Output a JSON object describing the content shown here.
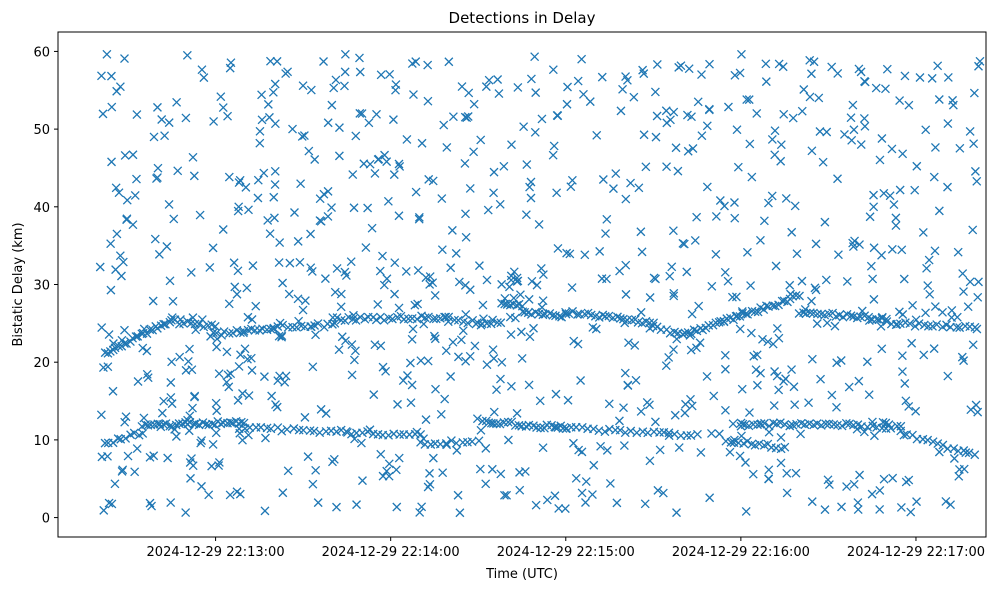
{
  "chart_data": {
    "type": "scatter",
    "title": "Detections in Delay",
    "xlabel": "Time (UTC)",
    "ylabel": "Bistatic Delay (km)",
    "marker": "x",
    "color": "#1f77b4",
    "grid": false,
    "legend": "none",
    "xlim": [
      "2024-12-29 22:12:06",
      "2024-12-29 22:17:24"
    ],
    "ylim": [
      -2.5,
      62.5
    ],
    "xticks": [
      "2024-12-29 22:13:00",
      "2024-12-29 22:14:00",
      "2024-12-29 22:15:00",
      "2024-12-29 22:16:00",
      "2024-12-29 22:17:00"
    ],
    "yticks": [
      0,
      10,
      20,
      30,
      40,
      50,
      60
    ],
    "series": [
      {
        "tracks": [
          {
            "start": "2024-12-29 22:12:22",
            "end": "2024-12-29 22:12:45",
            "y_start": 21.0,
            "y_end": 25.5,
            "count": 25
          },
          {
            "start": "2024-12-29 22:12:45",
            "end": "2024-12-29 22:13:00",
            "y_start": 25.5,
            "y_end": 24.5,
            "count": 12
          },
          {
            "start": "2024-12-29 22:12:58",
            "end": "2024-12-29 22:13:20",
            "y_start": 23.5,
            "y_end": 24.5,
            "count": 18
          },
          {
            "start": "2024-12-29 22:13:20",
            "end": "2024-12-29 22:13:40",
            "y_start": 24.5,
            "y_end": 24.8,
            "count": 14
          },
          {
            "start": "2024-12-29 22:13:40",
            "end": "2024-12-29 22:14:20",
            "y_start": 25.5,
            "y_end": 25.8,
            "count": 30
          },
          {
            "start": "2024-12-29 22:14:20",
            "end": "2024-12-29 22:14:38",
            "y_start": 25.3,
            "y_end": 25.0,
            "count": 12
          },
          {
            "start": "2024-12-29 22:14:38",
            "end": "2024-12-29 22:14:45",
            "y_start": 27.5,
            "y_end": 27.2,
            "count": 8
          },
          {
            "start": "2024-12-29 22:14:45",
            "end": "2024-12-29 22:15:00",
            "y_start": 26.5,
            "y_end": 26.0,
            "count": 14
          },
          {
            "start": "2024-12-29 22:15:00",
            "end": "2024-12-29 22:15:30",
            "y_start": 26.5,
            "y_end": 25.0,
            "count": 25
          },
          {
            "start": "2024-12-29 22:15:30",
            "end": "2024-12-29 22:15:40",
            "y_start": 24.5,
            "y_end": 23.5,
            "count": 8
          },
          {
            "start": "2024-12-29 22:15:40",
            "end": "2024-12-29 22:16:20",
            "y_start": 23.5,
            "y_end": 28.5,
            "count": 40
          },
          {
            "start": "2024-12-29 22:16:20",
            "end": "2024-12-29 22:16:50",
            "y_start": 26.5,
            "y_end": 25.5,
            "count": 25
          },
          {
            "start": "2024-12-29 22:16:50",
            "end": "2024-12-29 22:17:20",
            "y_start": 25.0,
            "y_end": 24.5,
            "count": 20
          },
          {
            "start": "2024-12-29 22:12:22",
            "end": "2024-12-29 22:12:35",
            "y_start": 9.5,
            "y_end": 11.0,
            "count": 10
          },
          {
            "start": "2024-12-29 22:12:35",
            "end": "2024-12-29 22:13:10",
            "y_start": 11.8,
            "y_end": 12.3,
            "count": 35
          },
          {
            "start": "2024-12-29 22:13:10",
            "end": "2024-12-29 22:13:45",
            "y_start": 11.5,
            "y_end": 11.0,
            "count": 20
          },
          {
            "start": "2024-12-29 22:13:45",
            "end": "2024-12-29 22:14:10",
            "y_start": 11.0,
            "y_end": 10.5,
            "count": 15
          },
          {
            "start": "2024-12-29 22:14:10",
            "end": "2024-12-29 22:14:30",
            "y_start": 9.5,
            "y_end": 10.0,
            "count": 12
          },
          {
            "start": "2024-12-29 22:14:30",
            "end": "2024-12-29 22:15:00",
            "y_start": 12.5,
            "y_end": 11.5,
            "count": 25
          },
          {
            "start": "2024-12-29 22:15:00",
            "end": "2024-12-29 22:15:45",
            "y_start": 11.5,
            "y_end": 10.5,
            "count": 25
          },
          {
            "start": "2024-12-29 22:15:55",
            "end": "2024-12-29 22:16:15",
            "y_start": 10.0,
            "y_end": 9.0,
            "count": 15
          },
          {
            "start": "2024-12-29 22:16:00",
            "end": "2024-12-29 22:16:40",
            "y_start": 12.0,
            "y_end": 12.0,
            "count": 30
          },
          {
            "start": "2024-12-29 22:16:40",
            "end": "2024-12-29 22:16:55",
            "y_start": 11.5,
            "y_end": 11.8,
            "count": 10
          },
          {
            "start": "2024-12-29 22:16:55",
            "end": "2024-12-29 22:17:20",
            "y_start": 11.0,
            "y_end": 8.0,
            "count": 15
          }
        ],
        "clutter": {
          "start": "2024-12-29 22:12:20",
          "end": "2024-12-29 22:17:22",
          "y_min": 0.5,
          "y_max": 59.8,
          "count": 950
        }
      }
    ]
  }
}
